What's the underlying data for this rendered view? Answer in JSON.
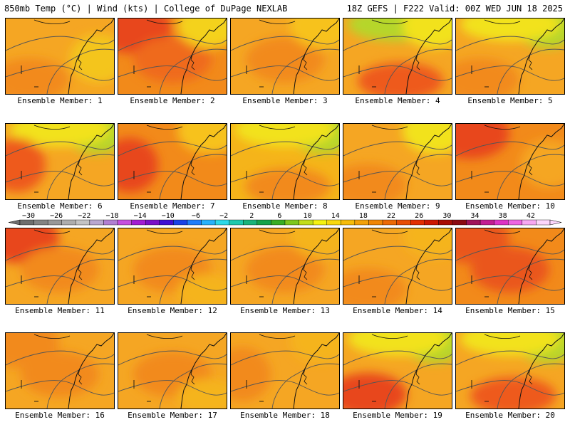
{
  "header": {
    "left": "850mb Temp (°C) | Wind (kts) | College of DuPage NEXLAB",
    "right": "18Z GEFS | F222 Valid: 00Z WED JUN 18 2025"
  },
  "colorbar": {
    "labels": [
      "−30",
      "−26",
      "−22",
      "−18",
      "−14",
      "−10",
      "−6",
      "−2",
      "2",
      "6",
      "10",
      "14",
      "18",
      "22",
      "26",
      "30",
      "34",
      "38",
      "42"
    ],
    "colors": [
      "#6e6e6e",
      "#838383",
      "#989898",
      "#adadad",
      "#c3c3c3",
      "#b9a7cf",
      "#b17fd2",
      "#c64fe0",
      "#a31cd3",
      "#7a0fc6",
      "#3f0fd3",
      "#1a43e6",
      "#1e7dfa",
      "#28b2fb",
      "#2ed9e8",
      "#1ec9ad",
      "#19b37a",
      "#16a34a",
      "#39ad24",
      "#7ec71d",
      "#c2dd1a",
      "#f5f211",
      "#f8d80c",
      "#f6bc0a",
      "#f3a107",
      "#f08605",
      "#ec6a04",
      "#e84e03",
      "#e22e02",
      "#cc1802",
      "#a80c05",
      "#8a0a12",
      "#a0135a",
      "#c21d92",
      "#dd33c4",
      "#ee65e2",
      "#f7a8f2",
      "#fcd6fb"
    ]
  },
  "panels": [
    {
      "label": "Ensemble Member: 1",
      "base": "#f5a623",
      "blobs": [
        {
          "c": "#f4c51a",
          "loc": "e"
        },
        {
          "c": "#f28a1a",
          "loc": "sw"
        }
      ]
    },
    {
      "label": "Ensemble Member: 2",
      "base": "#f28a1a",
      "blobs": [
        {
          "c": "#e8461c",
          "loc": "nw"
        },
        {
          "c": "#ef6a1a",
          "loc": "c"
        },
        {
          "c": "#f4d21a",
          "loc": "ne"
        }
      ]
    },
    {
      "label": "Ensemble Member: 3",
      "base": "#f5a623",
      "blobs": [
        {
          "c": "#f28a1a",
          "loc": "c"
        },
        {
          "c": "#f7c21a",
          "loc": "ne"
        }
      ]
    },
    {
      "label": "Ensemble Member: 4",
      "base": "#f5a623",
      "blobs": [
        {
          "c": "#b6d62a",
          "loc": "n"
        },
        {
          "c": "#ee5a1a",
          "loc": "s"
        },
        {
          "c": "#f2e21a",
          "loc": "ne"
        }
      ]
    },
    {
      "label": "Ensemble Member: 5",
      "base": "#f5a623",
      "blobs": [
        {
          "c": "#b6d62a",
          "loc": "ne"
        },
        {
          "c": "#f2e21a",
          "loc": "n"
        },
        {
          "c": "#f28a1a",
          "loc": "sw"
        }
      ]
    },
    {
      "label": "Ensemble Member: 6",
      "base": "#f5a623",
      "blobs": [
        {
          "c": "#b6d62a",
          "loc": "ne"
        },
        {
          "c": "#f2e21a",
          "loc": "n"
        },
        {
          "c": "#ee5a1a",
          "loc": "w"
        }
      ]
    },
    {
      "label": "Ensemble Member: 7",
      "base": "#f28a1a",
      "blobs": [
        {
          "c": "#e8461c",
          "loc": "w"
        },
        {
          "c": "#f7c21a",
          "loc": "ne"
        }
      ]
    },
    {
      "label": "Ensemble Member: 8",
      "base": "#f5b41a",
      "blobs": [
        {
          "c": "#b6d62a",
          "loc": "ne"
        },
        {
          "c": "#f2e21a",
          "loc": "n"
        },
        {
          "c": "#f28a1a",
          "loc": "s"
        }
      ]
    },
    {
      "label": "Ensemble Member: 9",
      "base": "#f5a623",
      "blobs": [
        {
          "c": "#f2e21a",
          "loc": "ne"
        },
        {
          "c": "#f28a1a",
          "loc": "sw"
        }
      ]
    },
    {
      "label": "Ensemble Member: 10",
      "base": "#f28a1a",
      "blobs": [
        {
          "c": "#e8461c",
          "loc": "nw"
        },
        {
          "c": "#f5a623",
          "loc": "e"
        }
      ]
    },
    {
      "label": "Ensemble Member: 11",
      "base": "#f5a623",
      "blobs": [
        {
          "c": "#e8461c",
          "loc": "nw"
        },
        {
          "c": "#f28a1a",
          "loc": "c"
        }
      ]
    },
    {
      "label": "Ensemble Member: 12",
      "base": "#f5a623",
      "blobs": [
        {
          "c": "#f28a1a",
          "loc": "c"
        },
        {
          "c": "#f5b41a",
          "loc": "se"
        }
      ]
    },
    {
      "label": "Ensemble Member: 13",
      "base": "#f5a623",
      "blobs": [
        {
          "c": "#f28a1a",
          "loc": "c"
        },
        {
          "c": "#f5b41a",
          "loc": "ne"
        }
      ]
    },
    {
      "label": "Ensemble Member: 14",
      "base": "#f5a623",
      "blobs": [
        {
          "c": "#f28a1a",
          "loc": "sw"
        },
        {
          "c": "#f5b41a",
          "loc": "ne"
        }
      ]
    },
    {
      "label": "Ensemble Member: 15",
      "base": "#f28a1a",
      "blobs": [
        {
          "c": "#ea561c",
          "loc": "c"
        },
        {
          "c": "#ea561c",
          "loc": "nw"
        }
      ]
    },
    {
      "label": "Ensemble Member: 16",
      "base": "#f5a623",
      "blobs": [
        {
          "c": "#f28a1a",
          "loc": "c"
        },
        {
          "c": "#f28a1a",
          "loc": "nw"
        }
      ]
    },
    {
      "label": "Ensemble Member: 17",
      "base": "#f5a623",
      "blobs": [
        {
          "c": "#f28a1a",
          "loc": "c"
        },
        {
          "c": "#f5b41a",
          "loc": "se"
        }
      ]
    },
    {
      "label": "Ensemble Member: 18",
      "base": "#f5a623",
      "blobs": [
        {
          "c": "#f28a1a",
          "loc": "w"
        },
        {
          "c": "#f5b41a",
          "loc": "ne"
        }
      ]
    },
    {
      "label": "Ensemble Member: 19",
      "base": "#f5a623",
      "blobs": [
        {
          "c": "#b6d62a",
          "loc": "ne"
        },
        {
          "c": "#f2e21a",
          "loc": "n"
        },
        {
          "c": "#e8461c",
          "loc": "sw"
        }
      ]
    },
    {
      "label": "Ensemble Member: 20",
      "base": "#f5a623",
      "blobs": [
        {
          "c": "#b6d62a",
          "loc": "ne"
        },
        {
          "c": "#f2e21a",
          "loc": "n"
        },
        {
          "c": "#ee5a1a",
          "loc": "s"
        }
      ]
    }
  ]
}
